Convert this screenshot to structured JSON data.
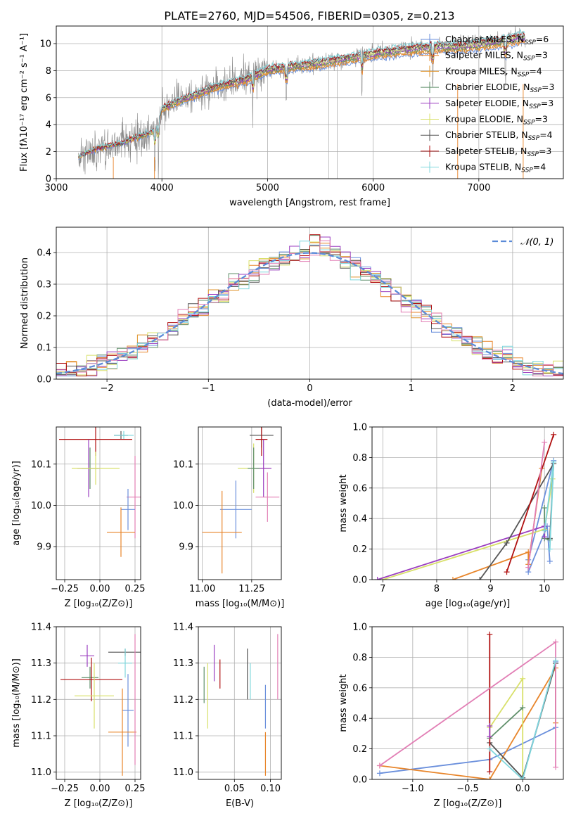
{
  "title": "PLATE=2760, MJD=54506, FIBERID=0305, z=0.213",
  "colors": {
    "Chabrier MILES": "#6a8fdc",
    "Salpeter MILES": "#e8852a",
    "Kroupa MILES": "#e0952e",
    "Chabrier ELODIE": "#5f8f6a",
    "Salpeter ELODIE": "#9b3fc0",
    "Kroupa ELODIE": "#d8e06a",
    "Chabrier STELIB": "#555555",
    "Salpeter STELIB": "#b01010",
    "Kroupa STELIB": "#7fd7dd",
    "pink": "#e27fb5",
    "data": "#888888"
  },
  "chart_data": [
    {
      "id": "spectrum",
      "type": "line",
      "xlabel": "wavelength [Angstrom, rest frame]",
      "ylabel": "Flux [fλ10⁻¹⁷ erg cm⁻² s⁻¹ A⁻¹]",
      "xlim": [
        3000,
        7800
      ],
      "ylim": [
        0,
        11.3
      ],
      "xticks": [
        3000,
        4000,
        5000,
        6000,
        7000
      ],
      "yticks": [
        0,
        2,
        4,
        6,
        8,
        10
      ],
      "legend_position": "top-right",
      "legend": [
        {
          "label": "Chabrier MILES, N",
          "sub": "SSP",
          "tail": "=6",
          "color": "#6a8fdc"
        },
        {
          "label": "Salpeter MILES, N",
          "sub": "SSP",
          "tail": "=3",
          "color": "#e8852a"
        },
        {
          "label": "Kroupa MILES, N",
          "sub": "SSP",
          "tail": "=4",
          "color": "#e0952e"
        },
        {
          "label": "Chabrier ELODIE, N",
          "sub": "SSP",
          "tail": "=3",
          "color": "#5f8f6a"
        },
        {
          "label": "Salpeter ELODIE, N",
          "sub": "SSP",
          "tail": "=3",
          "color": "#9b3fc0"
        },
        {
          "label": "Kroupa ELODIE, N",
          "sub": "SSP",
          "tail": "=3",
          "color": "#d8e06a"
        },
        {
          "label": "Chabrier STELIB, N",
          "sub": "SSP",
          "tail": "=4",
          "color": "#555555"
        },
        {
          "label": "Salpeter STELIB, N",
          "sub": "SSP",
          "tail": "=3",
          "color": "#b01010"
        },
        {
          "label": "Kroupa STELIB, N",
          "sub": "SSP",
          "tail": "=4",
          "color": "#7fd7dd"
        }
      ],
      "anchors": [
        [
          3200,
          1.6
        ],
        [
          3400,
          2.3
        ],
        [
          3600,
          2.6
        ],
        [
          3800,
          3.2
        ],
        [
          3950,
          3.6
        ],
        [
          4000,
          5.2
        ],
        [
          4200,
          5.9
        ],
        [
          4500,
          6.8
        ],
        [
          4800,
          7.4
        ],
        [
          5000,
          8.1
        ],
        [
          5200,
          8.3
        ],
        [
          5500,
          8.6
        ],
        [
          5800,
          9.0
        ],
        [
          6000,
          9.3
        ],
        [
          6300,
          9.6
        ],
        [
          6600,
          9.8
        ],
        [
          6800,
          9.8
        ],
        [
          7000,
          10.0
        ],
        [
          7200,
          10.2
        ],
        [
          7400,
          10.5
        ]
      ],
      "absorption_lines": [
        3933,
        3968,
        4861,
        5177,
        5893,
        6563,
        7250
      ]
    },
    {
      "id": "residuals",
      "type": "histogram",
      "xlabel": "(data-model)/error",
      "ylabel": "Normed distribution",
      "xlim": [
        -2.5,
        2.5
      ],
      "ylim": [
        0,
        0.48
      ],
      "xticks": [
        -2,
        -1,
        0,
        1,
        2
      ],
      "yticks": [
        0.0,
        0.1,
        0.2,
        0.3,
        0.4
      ],
      "legend": "𝒩(0, 1)",
      "legend_position": "top-right",
      "bin_width": 0.1
    },
    {
      "id": "age-vs-Z",
      "type": "scatter",
      "xlabel": "Z [log₁₀(Z/Z⊙)]",
      "ylabel": "age  [log₁₀(age/yr)]",
      "xlim": [
        -0.31,
        0.29
      ],
      "ylim": [
        9.82,
        10.19
      ],
      "xticks": [
        -0.25,
        0.0,
        0.25
      ],
      "xticklabels": [
        "−0.25",
        "0.00",
        "0.25"
      ],
      "yticks": [
        9.9,
        10.0,
        10.1
      ],
      "points": [
        {
          "x": 0.15,
          "y": 10.17,
          "xerr": 0.05,
          "yerr": 0.0,
          "color": "#555555"
        },
        {
          "x": 0.17,
          "y": 10.17,
          "xerr": 0.07,
          "yerr": 0.0,
          "color": "#7fd7dd"
        },
        {
          "x": -0.03,
          "y": 10.16,
          "xerr": 0.26,
          "yerr": 0.04,
          "color": "#b01010"
        },
        {
          "x": -0.08,
          "y": 10.09,
          "xerr": 0.08,
          "yerr": 0.07,
          "color": "#9b3fc0"
        },
        {
          "x": -0.07,
          "y": 10.09,
          "xerr": 0.06,
          "yerr": 0.05,
          "color": "#5f8f6a"
        },
        {
          "x": -0.03,
          "y": 10.09,
          "xerr": 0.17,
          "yerr": 0.04,
          "color": "#d8e06a"
        },
        {
          "x": 0.25,
          "y": 10.02,
          "xerr": 0.06,
          "yerr": 0.1,
          "color": "#e27fb5"
        },
        {
          "x": 0.2,
          "y": 9.99,
          "xerr": 0.05,
          "yerr": 0.05,
          "color": "#6a8fdc"
        },
        {
          "x": 0.15,
          "y": 9.935,
          "xerr": 0.1,
          "yerr": 0.06,
          "color": "#e8852a"
        }
      ]
    },
    {
      "id": "age-vs-mass",
      "type": "scatter",
      "xlabel": "mass [log₁₀(M/M⊙)]",
      "ylabel": "",
      "xlim": [
        10.98,
        11.4
      ],
      "ylim": [
        9.82,
        10.19
      ],
      "xticks": [
        11.0,
        11.25
      ],
      "xticklabels": [
        "11.00",
        "11.25"
      ],
      "yticks": [
        9.9,
        10.0,
        10.1
      ],
      "points": [
        {
          "x": 11.3,
          "y": 10.17,
          "xerr": 0.06,
          "yerr": 0.03,
          "color": "#555555"
        },
        {
          "x": 11.3,
          "y": 10.16,
          "xerr": 0.03,
          "yerr": 0.04,
          "color": "#b01010"
        },
        {
          "x": 11.26,
          "y": 10.09,
          "xerr": 0.08,
          "yerr": 0.06,
          "color": "#d8e06a"
        },
        {
          "x": 11.31,
          "y": 10.09,
          "xerr": 0.04,
          "yerr": 0.07,
          "color": "#9b3fc0"
        },
        {
          "x": 11.26,
          "y": 10.09,
          "xerr": 0.03,
          "yerr": 0.05,
          "color": "#5f8f6a"
        },
        {
          "x": 11.33,
          "y": 10.02,
          "xerr": 0.06,
          "yerr": 0.06,
          "color": "#e27fb5"
        },
        {
          "x": 11.17,
          "y": 9.99,
          "xerr": 0.08,
          "yerr": 0.07,
          "color": "#6a8fdc"
        },
        {
          "x": 11.1,
          "y": 9.935,
          "xerr": 0.1,
          "yerr": 0.1,
          "color": "#e8852a"
        }
      ]
    },
    {
      "id": "mass-weight-vs-age",
      "type": "line",
      "xlabel": "age  [log₁₀(age/yr)]",
      "ylabel": "mass weight",
      "xlim": [
        6.8,
        10.35
      ],
      "ylim": [
        0,
        1.0
      ],
      "xticks": [
        7,
        8,
        9,
        10
      ],
      "yticks": [
        0.0,
        0.2,
        0.4,
        0.6,
        0.8,
        1.0
      ],
      "series": [
        {
          "color": "#6a8fdc",
          "points": [
            [
              10.17,
              0.78
            ],
            [
              9.7,
              0.13
            ],
            [
              9.7,
              0.05
            ],
            [
              10.05,
              0.35
            ],
            [
              10.1,
              0.12
            ]
          ]
        },
        {
          "color": "#e8852a",
          "points": [
            [
              8.3,
              0.0
            ],
            [
              9.7,
              0.18
            ],
            [
              9.7,
              0.1
            ],
            [
              9.95,
              0.73
            ]
          ]
        },
        {
          "color": "#d8e06a",
          "points": [
            [
              7.0,
              0.0
            ],
            [
              10.0,
              0.33
            ],
            [
              10.15,
              0.66
            ]
          ]
        },
        {
          "color": "#5f8f6a",
          "points": [
            [
              10.0,
              0.47
            ],
            [
              10.0,
              0.27
            ],
            [
              10.1,
              0.26
            ]
          ]
        },
        {
          "color": "#9b3fc0",
          "points": [
            [
              6.9,
              0.0
            ],
            [
              10.0,
              0.35
            ],
            [
              10.0,
              0.28
            ]
          ]
        },
        {
          "color": "#555555",
          "points": [
            [
              8.8,
              0.0
            ],
            [
              9.3,
              0.24
            ],
            [
              10.17,
              0.76
            ],
            [
              10.1,
              0.27
            ]
          ]
        },
        {
          "color": "#b01010",
          "points": [
            [
              9.3,
              0.05
            ],
            [
              10.17,
              0.95
            ]
          ]
        },
        {
          "color": "#e27fb5",
          "points": [
            [
              9.7,
              0.08
            ],
            [
              10.0,
              0.9
            ]
          ]
        },
        {
          "color": "#7fd7dd",
          "points": [
            [
              10.0,
              0.32
            ],
            [
              10.17,
              0.77
            ],
            [
              10.1,
              0.2
            ]
          ]
        }
      ]
    },
    {
      "id": "mass-vs-Z",
      "type": "scatter",
      "xlabel": "Z [log₁₀(Z/Z⊙)]",
      "ylabel": "mass [log₁₀(M/M⊙)]",
      "xlim": [
        -0.31,
        0.29
      ],
      "ylim": [
        10.98,
        11.4
      ],
      "xticks": [
        -0.25,
        0.0,
        0.25
      ],
      "xticklabels": [
        "−0.25",
        "0.00",
        "0.25"
      ],
      "yticks": [
        11.0,
        11.1,
        11.2,
        11.3,
        11.4
      ],
      "points": [
        {
          "x": 0.18,
          "y": 11.33,
          "xerr": 0.12,
          "yerr": 0.0,
          "color": "#555555"
        },
        {
          "x": -0.09,
          "y": 11.32,
          "xerr": 0.05,
          "yerr": 0.03,
          "color": "#9b3fc0"
        },
        {
          "x": 0.18,
          "y": 11.3,
          "xerr": 0.05,
          "yerr": 0.04,
          "color": "#7fd7dd"
        },
        {
          "x": -0.07,
          "y": 11.26,
          "xerr": 0.06,
          "yerr": 0.03,
          "color": "#5f8f6a"
        },
        {
          "x": -0.06,
          "y": 11.255,
          "xerr": 0.22,
          "yerr": 0.06,
          "color": "#b01010"
        },
        {
          "x": -0.04,
          "y": 11.21,
          "xerr": 0.14,
          "yerr": 0.09,
          "color": "#d8e06a"
        },
        {
          "x": 0.2,
          "y": 11.17,
          "xerr": 0.04,
          "yerr": 0.1,
          "color": "#6a8fdc"
        },
        {
          "x": 0.16,
          "y": 11.11,
          "xerr": 0.1,
          "yerr": 0.12,
          "color": "#e8852a"
        },
        {
          "x": 0.25,
          "y": 11.2,
          "xerr": 0.0,
          "yerr": 0.18,
          "color": "#e27fb5"
        }
      ]
    },
    {
      "id": "mass-vs-EBV",
      "type": "scatter",
      "xlabel": "E(B-V)",
      "ylabel": "",
      "xlim": [
        0.0,
        0.115
      ],
      "ylim": [
        10.98,
        11.4
      ],
      "xticks": [
        0.05,
        0.1
      ],
      "xticklabels": [
        "0.05",
        "0.10"
      ],
      "yticks": [
        11.0,
        11.1,
        11.2,
        11.3,
        11.4
      ],
      "points": [
        {
          "x": 0.008,
          "y": 11.24,
          "xerr": 0.0,
          "yerr": 0.05,
          "color": "#5f8f6a"
        },
        {
          "x": 0.013,
          "y": 11.21,
          "xerr": 0.0,
          "yerr": 0.09,
          "color": "#d8e06a"
        },
        {
          "x": 0.022,
          "y": 11.3,
          "xerr": 0.0,
          "yerr": 0.05,
          "color": "#9b3fc0"
        },
        {
          "x": 0.03,
          "y": 11.27,
          "xerr": 0.0,
          "yerr": 0.04,
          "color": "#b01010"
        },
        {
          "x": 0.068,
          "y": 11.27,
          "xerr": 0.0,
          "yerr": 0.07,
          "color": "#555555"
        },
        {
          "x": 0.072,
          "y": 11.25,
          "xerr": 0.0,
          "yerr": 0.05,
          "color": "#7fd7dd"
        },
        {
          "x": 0.093,
          "y": 11.18,
          "xerr": 0.0,
          "yerr": 0.06,
          "color": "#6a8fdc"
        },
        {
          "x": 0.093,
          "y": 11.05,
          "xerr": 0.0,
          "yerr": 0.06,
          "color": "#e8852a"
        },
        {
          "x": 0.11,
          "y": 11.29,
          "xerr": 0.0,
          "yerr": 0.09,
          "color": "#e27fb5"
        }
      ]
    },
    {
      "id": "mass-weight-vs-Z",
      "type": "line",
      "xlabel": "Z [log₁₀(Z/Z⊙)]",
      "ylabel": "mass weight",
      "xlim": [
        -1.37,
        0.37
      ],
      "ylim": [
        0,
        1.0
      ],
      "xticks": [
        -1.0,
        -0.5,
        0.0
      ],
      "xticklabels": [
        "−1.0",
        "−0.5",
        "0.0"
      ],
      "yticks": [
        0.0,
        0.2,
        0.4,
        0.6,
        0.8,
        1.0
      ],
      "series": [
        {
          "color": "#6a8fdc",
          "points": [
            [
              -1.3,
              0.04
            ],
            [
              -0.3,
              0.13
            ],
            [
              0.3,
              0.34
            ],
            [
              0.3,
              0.77
            ],
            [
              0.0,
              0.01
            ]
          ]
        },
        {
          "color": "#e8852a",
          "points": [
            [
              -1.3,
              0.09
            ],
            [
              -0.3,
              0.0
            ],
            [
              0.3,
              0.73
            ],
            [
              0.3,
              0.37
            ]
          ]
        },
        {
          "color": "#d8e06a",
          "points": [
            [
              -0.3,
              0.34
            ],
            [
              0.0,
              0.66
            ],
            [
              0.0,
              0.0
            ]
          ]
        },
        {
          "color": "#5f8f6a",
          "points": [
            [
              -0.3,
              0.27
            ],
            [
              0.0,
              0.47
            ]
          ]
        },
        {
          "color": "#555555",
          "points": [
            [
              -0.3,
              0.24
            ],
            [
              0.0,
              0.01
            ],
            [
              0.3,
              0.76
            ]
          ]
        },
        {
          "color": "#b01010",
          "points": [
            [
              -0.3,
              0.95
            ],
            [
              -0.3,
              0.05
            ]
          ]
        },
        {
          "color": "#e27fb5",
          "points": [
            [
              -1.3,
              0.09
            ],
            [
              0.3,
              0.9
            ],
            [
              0.3,
              0.08
            ]
          ]
        },
        {
          "color": "#7fd7dd",
          "points": [
            [
              -0.3,
              0.2
            ],
            [
              0.0,
              0.0
            ],
            [
              0.3,
              0.78
            ]
          ]
        },
        {
          "color": "#9b3fc0",
          "points": [
            [
              -0.3,
              0.28
            ],
            [
              -0.3,
              0.35
            ]
          ]
        }
      ]
    }
  ]
}
